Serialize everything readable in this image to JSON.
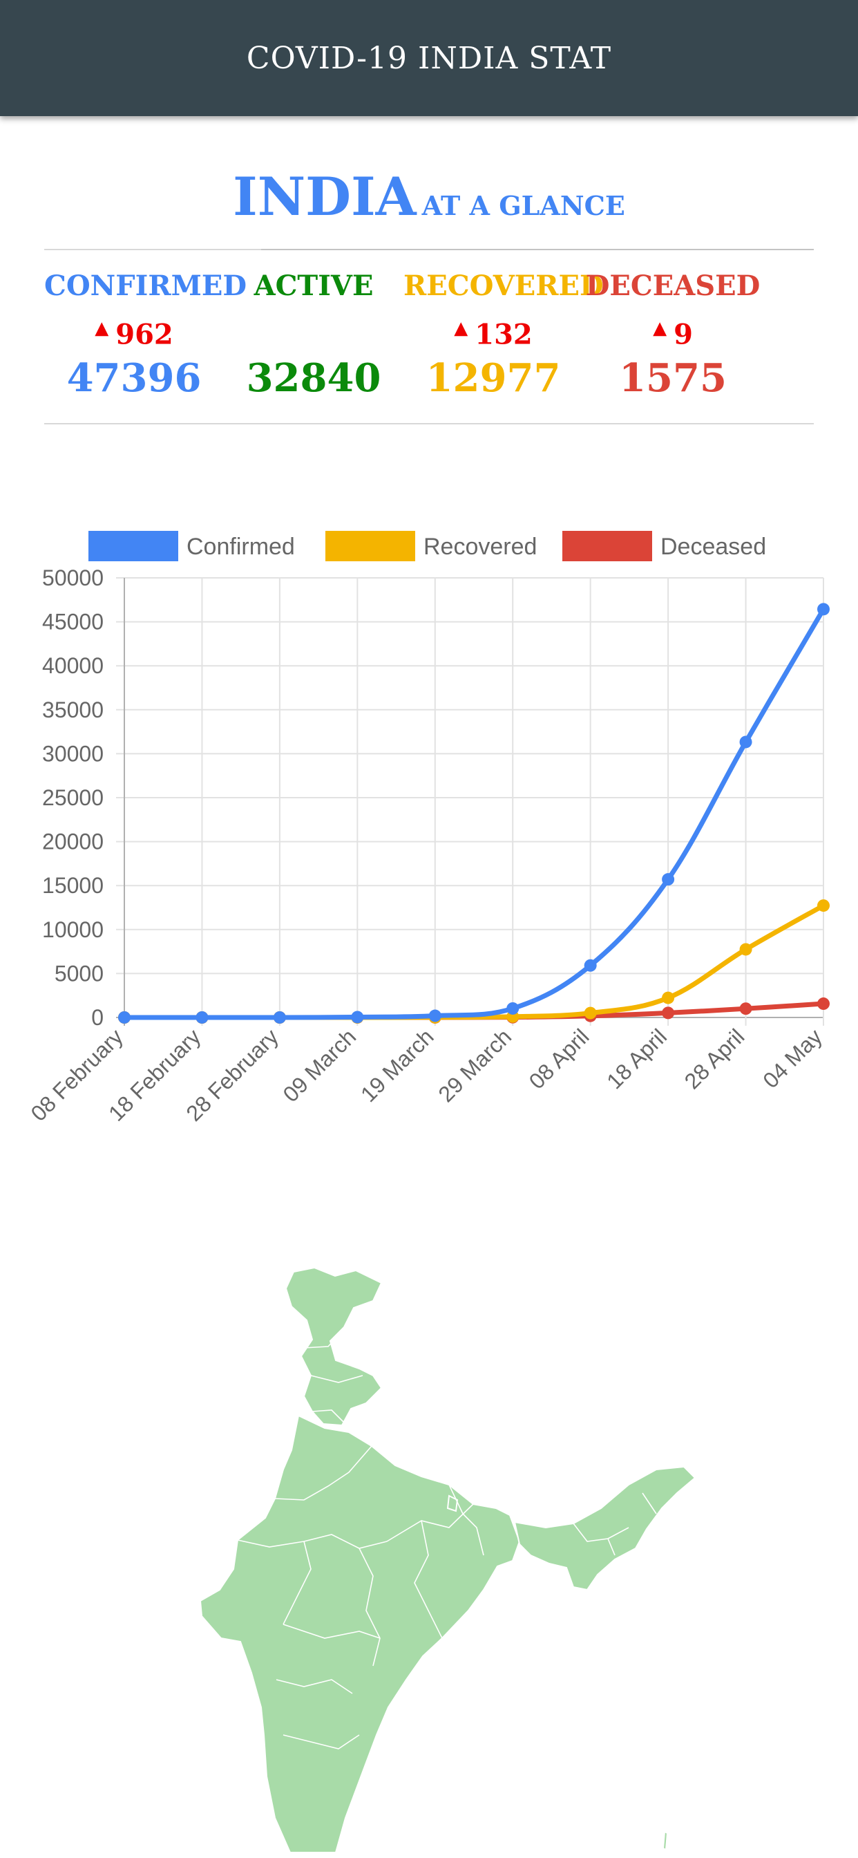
{
  "appbar": {
    "title": "COVID-19 INDIA STAT"
  },
  "hero": {
    "title_main": "INDIA",
    "title_sub": "AT A GLANCE"
  },
  "stats": [
    {
      "label": "CONFIRMED",
      "delta": "962",
      "value": "47396",
      "color": "#4285f4"
    },
    {
      "label": "ACTIVE",
      "delta": "",
      "value": "32840",
      "color": "#0b8a0b"
    },
    {
      "label": "RECOVERED",
      "delta": "132",
      "value": "12977",
      "color": "#f4b400"
    },
    {
      "label": "DECEASED",
      "delta": "9",
      "value": "1575",
      "color": "#db4437"
    }
  ],
  "chart_data": {
    "type": "line",
    "x": [
      "08 February",
      "18 February",
      "28 February",
      "09 March",
      "19 March",
      "29 March",
      "08 April",
      "18 April",
      "28 April",
      "04 May"
    ],
    "ylim": [
      0,
      50000
    ],
    "yticks": [
      0,
      5000,
      10000,
      15000,
      20000,
      25000,
      30000,
      35000,
      40000,
      45000,
      50000
    ],
    "grid": true,
    "legend_position": "top",
    "series": [
      {
        "name": "Confirmed",
        "color": "#4285f4",
        "values": [
          3,
          3,
          3,
          43,
          194,
          1024,
          5916,
          15712,
          31332,
          46433
        ]
      },
      {
        "name": "Recovered",
        "color": "#f4b400",
        "values": [
          0,
          0,
          0,
          4,
          15,
          95,
          506,
          2231,
          7747,
          12727
        ]
      },
      {
        "name": "Deceased",
        "color": "#db4437",
        "values": [
          0,
          0,
          0,
          1,
          4,
          27,
          178,
          521,
          1007,
          1568
        ]
      }
    ]
  },
  "map": {
    "fill_color": "#a8dba8",
    "border_color": "#ffffff"
  }
}
